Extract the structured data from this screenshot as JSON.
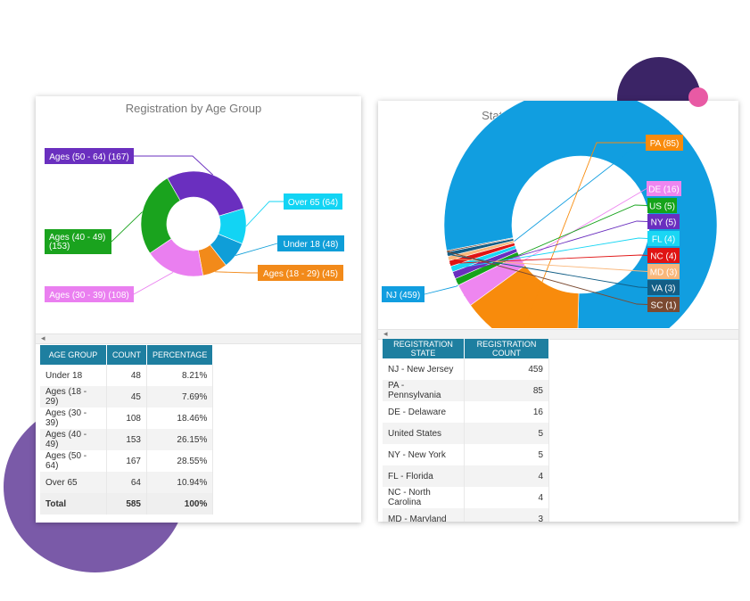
{
  "chart_data": [
    {
      "type": "pie",
      "title": "Registration by Age Group",
      "series": [
        {
          "name": "Ages (50 - 64)",
          "value": 167,
          "label": "Ages (50 - 64) (167)",
          "color": "#6a2fbf"
        },
        {
          "name": "Over 65",
          "value": 64,
          "label": "Over 65 (64)",
          "color": "#12d4f4"
        },
        {
          "name": "Under 18",
          "value": 48,
          "label": "Under 18 (48)",
          "color": "#0f9ed8"
        },
        {
          "name": "Ages (18 - 29)",
          "value": 45,
          "label": "Ages (18 - 29) (45)",
          "color": "#f28a1a"
        },
        {
          "name": "Ages (30 - 39)",
          "value": 108,
          "label": "Ages (30 - 39) (108)",
          "color": "#ea7ff0"
        },
        {
          "name": "Ages (40 - 49)",
          "value": 153,
          "label": "Ages (40 - 49) (153)",
          "color": "#1aa31e"
        }
      ]
    },
    {
      "type": "pie",
      "title": "State of Registration",
      "series": [
        {
          "name": "NJ",
          "value": 459,
          "label": "NJ (459)",
          "color": "#119ee0"
        },
        {
          "name": "PA",
          "value": 85,
          "label": "PA (85)",
          "color": "#f88b0c"
        },
        {
          "name": "DE",
          "value": 16,
          "label": "DE (16)",
          "color": "#ee86f0"
        },
        {
          "name": "US",
          "value": 5,
          "label": "US (5)",
          "color": "#15a31a"
        },
        {
          "name": "NY",
          "value": 5,
          "label": "NY (5)",
          "color": "#6a2fbf"
        },
        {
          "name": "FL",
          "value": 4,
          "label": "FL (4)",
          "color": "#1ad6f4"
        },
        {
          "name": "NC",
          "value": 4,
          "label": "NC (4)",
          "color": "#e01414"
        },
        {
          "name": "MD",
          "value": 3,
          "label": "MD (3)",
          "color": "#f9b77b"
        },
        {
          "name": "VA",
          "value": 3,
          "label": "VA (3)",
          "color": "#125e86"
        },
        {
          "name": "SC",
          "value": 1,
          "label": "SC (1)",
          "color": "#7b4a31"
        }
      ]
    }
  ],
  "age_table": {
    "headers": [
      "AGE GROUP",
      "COUNT",
      "PERCENTAGE"
    ],
    "rows": [
      [
        "Under 18",
        "48",
        "8.21%"
      ],
      [
        "Ages (18 - 29)",
        "45",
        "7.69%"
      ],
      [
        "Ages (30 - 39)",
        "108",
        "18.46%"
      ],
      [
        "Ages (40 - 49)",
        "153",
        "26.15%"
      ],
      [
        "Ages (50 - 64)",
        "167",
        "28.55%"
      ],
      [
        "Over 65",
        "64",
        "10.94%"
      ]
    ],
    "total": [
      "Total",
      "585",
      "100%"
    ]
  },
  "state_table": {
    "headers": [
      "REGISTRATION STATE",
      "REGISTRATION COUNT"
    ],
    "rows": [
      [
        "NJ - New Jersey",
        "459"
      ],
      [
        "PA - Pennsylvania",
        "85"
      ],
      [
        "DE - Delaware",
        "16"
      ],
      [
        "United States",
        "5"
      ],
      [
        "NY - New York",
        "5"
      ],
      [
        "FL - Florida",
        "4"
      ],
      [
        "NC - North Carolina",
        "4"
      ],
      [
        "MD - Maryland",
        "3"
      ]
    ]
  },
  "scroll_arrow": "◂"
}
